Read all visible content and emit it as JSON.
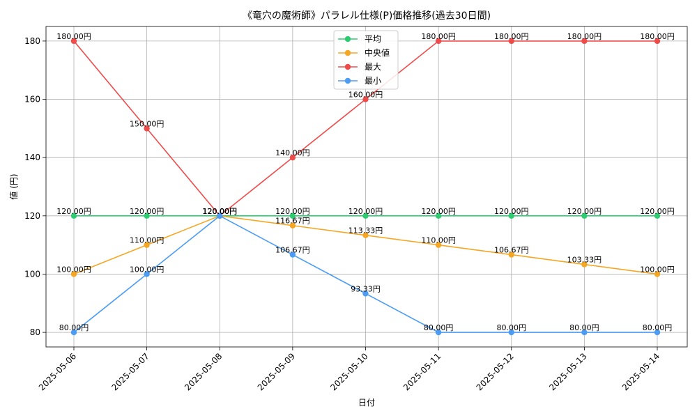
{
  "chart_data": {
    "type": "line",
    "title": "《竜穴の魔術師》パラレル仕様(P)価格推移(過去30日間)",
    "xlabel": "日付",
    "ylabel": "値 (円)",
    "categories": [
      "2025-05-06",
      "2025-05-07",
      "2025-05-08",
      "2025-05-09",
      "2025-05-10",
      "2025-05-11",
      "2025-05-12",
      "2025-05-13",
      "2025-05-14"
    ],
    "ylim": [
      75,
      185
    ],
    "yticks": [
      80,
      100,
      120,
      140,
      160,
      180
    ],
    "grid": true,
    "legend_position": "top-center",
    "series": [
      {
        "name": "平均",
        "color": "#2ecc71",
        "values": [
          120,
          120,
          120,
          120,
          120,
          120,
          120,
          120,
          120
        ],
        "labels": [
          "120.00円",
          "120.00円",
          "120.00円",
          "120.00円",
          "120.00円",
          "120.00円",
          "120.00円",
          "120.00円",
          "120.00円"
        ]
      },
      {
        "name": "中央値",
        "color": "#f5a623",
        "values": [
          100,
          110,
          120,
          116.67,
          113.33,
          110,
          106.67,
          103.33,
          100
        ],
        "labels": [
          "100.00円",
          "110.00円",
          "120.00円",
          "116.67円",
          "113.33円",
          "110.00円",
          "106.67円",
          "103.33円",
          "100.00円"
        ]
      },
      {
        "name": "最大",
        "color": "#ef4b4b",
        "values": [
          180,
          150,
          120,
          140,
          160,
          180,
          180,
          180,
          180
        ],
        "labels": [
          "180.00円",
          "150.00円",
          "120.00円",
          "140.00円",
          "160.00円",
          "180.00円",
          "180.00円",
          "180.00円",
          "180.00円"
        ]
      },
      {
        "name": "最小",
        "color": "#4a9cf5",
        "values": [
          80,
          100,
          120,
          106.67,
          93.33,
          80,
          80,
          80,
          80
        ],
        "labels": [
          "80.00円",
          "100.00円",
          "120.00円",
          "106.67円",
          "93.33円",
          "80.00円",
          "80.00円",
          "80.00円",
          "80.00円"
        ]
      }
    ]
  }
}
